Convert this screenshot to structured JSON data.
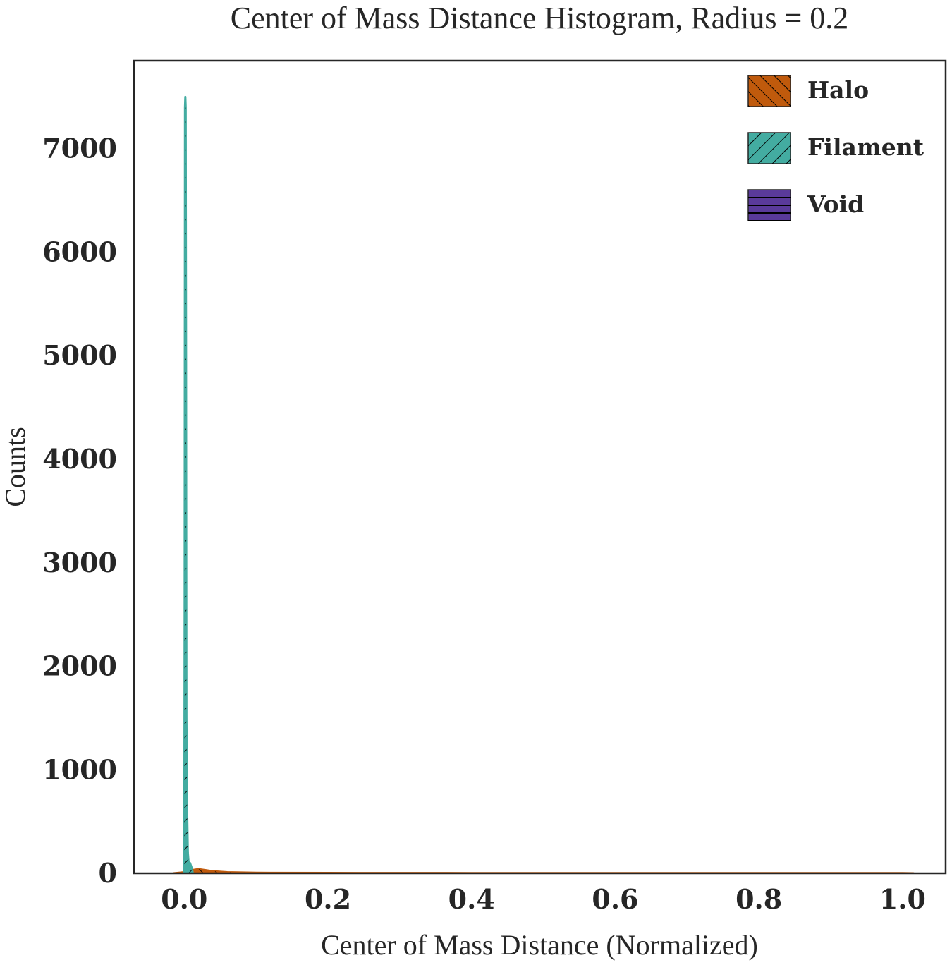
{
  "chart_data": {
    "type": "bar",
    "title": "Center of Mass Distance Histogram, Radius = 0.2",
    "xlabel": "Center of Mass Distance (Normalized)",
    "ylabel": "Counts",
    "xlim": [
      -0.07,
      1.06
    ],
    "ylim": [
      0,
      7850
    ],
    "xticks": [
      0.0,
      0.2,
      0.4,
      0.6,
      0.8,
      1.0
    ],
    "xtick_labels": [
      "0.0",
      "0.2",
      "0.4",
      "0.6",
      "0.8",
      "1.0"
    ],
    "yticks": [
      0,
      1000,
      2000,
      3000,
      4000,
      5000,
      6000,
      7000
    ],
    "ytick_labels": [
      "0",
      "1000",
      "2000",
      "3000",
      "4000",
      "5000",
      "6000",
      "7000"
    ],
    "grid": false,
    "legend_position": "top-right",
    "series": [
      {
        "name": "Halo",
        "color": "#c05a0c",
        "hatch": "forward-diagonal",
        "x": [
          -0.015,
          0.0,
          0.01,
          0.02,
          0.03,
          0.04,
          0.06,
          0.1,
          0.2,
          0.4,
          0.6,
          0.8,
          1.0,
          1.015
        ],
        "y": [
          0,
          10,
          30,
          40,
          30,
          20,
          10,
          5,
          3,
          2,
          2,
          2,
          2,
          0
        ]
      },
      {
        "name": "Filament",
        "color": "#43aca1",
        "hatch": "back-diagonal",
        "x": [
          0.0,
          0.0005,
          0.001,
          0.0015,
          0.002,
          0.0025,
          0.003,
          0.004,
          0.005,
          0.006,
          0.008,
          0.01,
          0.012
        ],
        "y": [
          0,
          2500,
          7400,
          7500,
          7400,
          5000,
          1500,
          600,
          200,
          110,
          100,
          60,
          0
        ]
      },
      {
        "name": "Void",
        "color": "#5a3a9a",
        "hatch": "horizontal",
        "x": [
          0.0,
          0.001,
          0.002,
          0.003
        ],
        "y": [
          0,
          5,
          5,
          0
        ]
      }
    ]
  }
}
